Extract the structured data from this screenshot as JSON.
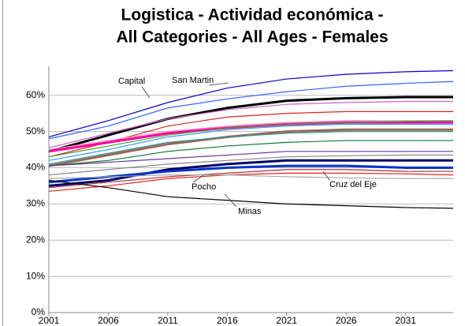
{
  "chart_data": {
    "type": "line",
    "title": [
      "Logistica - Actividad económica -",
      "All Categories - All Ages - Females"
    ],
    "x": [
      2001,
      2006,
      2011,
      2016,
      2021,
      2026,
      2031,
      2035
    ],
    "xlim": [
      2001,
      2035
    ],
    "xticks": [
      2001,
      2006,
      2011,
      2016,
      2021,
      2026,
      2031
    ],
    "ylim": [
      0,
      68
    ],
    "yticks": [
      {
        "value": 0,
        "label": "0%"
      },
      {
        "value": 10,
        "label": "10%"
      },
      {
        "value": 20,
        "label": "20%"
      },
      {
        "value": 30,
        "label": "30%"
      },
      {
        "value": 40,
        "label": "40%"
      },
      {
        "value": 50,
        "label": "50%"
      },
      {
        "value": 60,
        "label": "60%"
      }
    ],
    "grid": true,
    "annotations": [
      "Capital",
      "San Martin",
      "Pocho",
      "Cruz del Eje",
      "Minas"
    ],
    "series": [
      {
        "color": "#0000cc",
        "linewidth": 1.2,
        "values": [
          48.5,
          53,
          58,
          62,
          64.5,
          65.8,
          66.5,
          66.8
        ]
      },
      {
        "color": "#3366ff",
        "linewidth": 1.2,
        "values": [
          48,
          51.5,
          56.5,
          59,
          61,
          62.5,
          63.3,
          63.8
        ]
      },
      {
        "color": "#000000",
        "linewidth": 3,
        "values": [
          44.5,
          49,
          53.5,
          56.5,
          58.5,
          59.2,
          59.5,
          59.5
        ]
      },
      {
        "color": "#cc66cc",
        "linewidth": 1.2,
        "values": [
          45.5,
          49.5,
          53.5,
          56,
          57.5,
          58,
          58.3,
          58.3
        ]
      },
      {
        "color": "#dd2222",
        "linewidth": 1.2,
        "values": [
          43,
          47,
          51.5,
          54,
          55,
          55.5,
          55.5,
          55.5
        ]
      },
      {
        "color": "#ff0099",
        "linewidth": 3,
        "values": [
          44.5,
          47,
          49.5,
          51,
          52,
          52.5,
          52.5,
          52.5
        ]
      },
      {
        "color": "#ff88cc",
        "linewidth": 1.2,
        "values": [
          45,
          47.5,
          50,
          51.5,
          52.5,
          53,
          53,
          53
        ]
      },
      {
        "color": "#33aa33",
        "linewidth": 1.2,
        "values": [
          43,
          46,
          49,
          51,
          52,
          52.5,
          52.8,
          53
        ]
      },
      {
        "color": "#3399ff",
        "linewidth": 1.2,
        "values": [
          42,
          45,
          48.5,
          50.5,
          51.5,
          52,
          52,
          52
        ]
      },
      {
        "color": "#996655",
        "linewidth": 3,
        "values": [
          40.5,
          43.5,
          46.5,
          48.5,
          50,
          50.5,
          50.5,
          50.5
        ]
      },
      {
        "color": "#339999",
        "linewidth": 1.2,
        "values": [
          41,
          44,
          47,
          48.5,
          49.5,
          50,
          50,
          50
        ]
      },
      {
        "color": "#117733",
        "linewidth": 1.2,
        "values": [
          40.5,
          42,
          44.5,
          46,
          47,
          47.5,
          47.5,
          47.5
        ]
      },
      {
        "color": "#663399",
        "linewidth": 1.2,
        "values": [
          40.5,
          41.5,
          42.5,
          43.5,
          44.5,
          44.5,
          44.5,
          44.5
        ]
      },
      {
        "color": "#888888",
        "linewidth": 1.2,
        "values": [
          38,
          39.5,
          41,
          42,
          43,
          43.3,
          43.5,
          43.5
        ]
      },
      {
        "color": "#000066",
        "linewidth": 3,
        "values": [
          35,
          36.5,
          39.5,
          41,
          42,
          42,
          42,
          42
        ]
      },
      {
        "color": "#0033cc",
        "linewidth": 3,
        "values": [
          36,
          37.5,
          39,
          40,
          40.5,
          40.5,
          40,
          40
        ]
      },
      {
        "color": "#ee2222",
        "linewidth": 1.2,
        "values": [
          33.5,
          35,
          37,
          38,
          38.5,
          38.5,
          38.3,
          38
        ]
      },
      {
        "color": "#aa3333",
        "linewidth": 1.2,
        "values": [
          34.5,
          36,
          37.5,
          38.5,
          39.5,
          39.5,
          39,
          39
        ]
      },
      {
        "color": "#aaaaaa",
        "linewidth": 1.2,
        "values": [
          37,
          37.5,
          38,
          38,
          37.5,
          37.2,
          37,
          37
        ]
      },
      {
        "color": "#000000",
        "linewidth": 1.2,
        "values": [
          36.5,
          34.5,
          32,
          31,
          30,
          29.5,
          29,
          28.8
        ]
      }
    ]
  }
}
